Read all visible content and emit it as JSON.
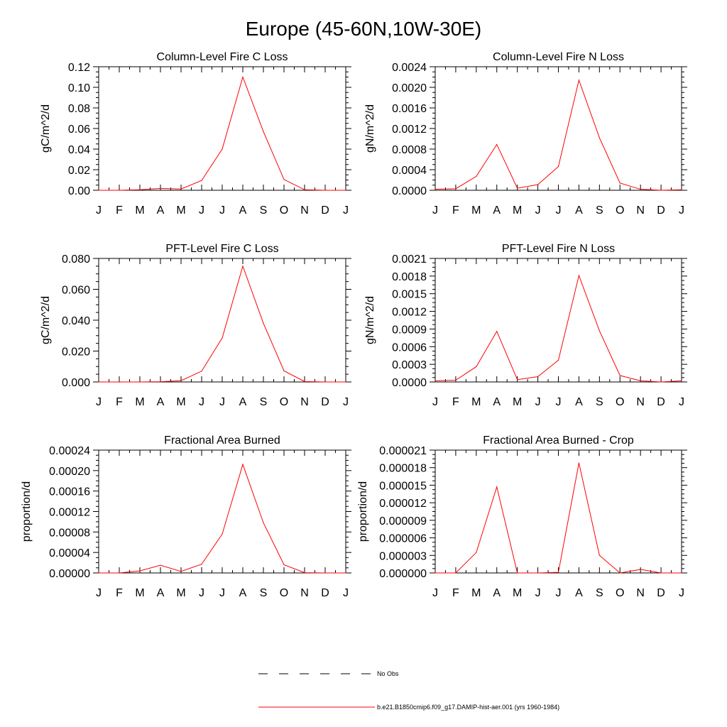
{
  "title": "Europe (45-60N,10W-30E)",
  "legend": {
    "items": [
      {
        "label": "No Obs",
        "style": "dashed",
        "color": "#000000"
      },
      {
        "label": "b.e21.B1850cmip6.f09_g17.DAMIP-hist-aer.001 (yrs 1960-1984)",
        "style": "solid",
        "color": "#ff0000"
      }
    ]
  },
  "chart_data": [
    {
      "type": "line",
      "title": "Column-Level Fire C Loss",
      "ylabel": "gC/m^2/d",
      "categories": [
        "J",
        "F",
        "M",
        "A",
        "M",
        "J",
        "J",
        "A",
        "S",
        "O",
        "N",
        "D",
        "J"
      ],
      "ylim": [
        0,
        0.12
      ],
      "yticks": [
        "0.00",
        "0.02",
        "0.04",
        "0.06",
        "0.08",
        "0.10",
        "0.12"
      ],
      "series": [
        {
          "color": "#ff0000",
          "values": [
            0.0,
            0.0,
            0.0005,
            0.0018,
            0.0012,
            0.0095,
            0.04,
            0.11,
            0.057,
            0.0105,
            0.0005,
            0.0,
            0.0
          ]
        }
      ]
    },
    {
      "type": "line",
      "title": "Column-Level Fire N Loss",
      "ylabel": "gN/m^2/d",
      "categories": [
        "J",
        "F",
        "M",
        "A",
        "M",
        "J",
        "J",
        "A",
        "S",
        "O",
        "N",
        "D",
        "J"
      ],
      "ylim": [
        0,
        0.0024
      ],
      "yticks": [
        "0.0000",
        "0.0004",
        "0.0008",
        "0.0012",
        "0.0016",
        "0.0020",
        "0.0024"
      ],
      "series": [
        {
          "color": "#ff0000",
          "values": [
            2e-05,
            3e-05,
            0.00027,
            0.00089,
            4e-05,
            0.00011,
            0.00046,
            0.00214,
            0.00102,
            0.00014,
            2e-05,
            0.0,
            1e-05
          ]
        }
      ]
    },
    {
      "type": "line",
      "title": "PFT-Level Fire C Loss",
      "ylabel": "gC/m^2/d",
      "categories": [
        "J",
        "F",
        "M",
        "A",
        "M",
        "J",
        "J",
        "A",
        "S",
        "O",
        "N",
        "D",
        "J"
      ],
      "ylim": [
        0,
        0.08
      ],
      "yticks": [
        "0.000",
        "0.020",
        "0.040",
        "0.060",
        "0.080"
      ],
      "series": [
        {
          "color": "#ff0000",
          "values": [
            0.0,
            0.0,
            0.0,
            0.0002,
            0.0008,
            0.007,
            0.0285,
            0.075,
            0.038,
            0.0072,
            0.0003,
            0.0,
            0.0
          ]
        }
      ]
    },
    {
      "type": "line",
      "title": "PFT-Level Fire N Loss",
      "ylabel": "gN/m^2/d",
      "categories": [
        "J",
        "F",
        "M",
        "A",
        "M",
        "J",
        "J",
        "A",
        "S",
        "O",
        "N",
        "D",
        "J"
      ],
      "ylim": [
        0,
        0.0021
      ],
      "yticks": [
        "0.0000",
        "0.0003",
        "0.0006",
        "0.0009",
        "0.0012",
        "0.0015",
        "0.0018",
        "0.0021"
      ],
      "series": [
        {
          "color": "#ff0000",
          "values": [
            2e-05,
            3e-05,
            0.00026,
            0.00086,
            4e-05,
            9e-05,
            0.00037,
            0.00181,
            0.00087,
            0.00011,
            2e-05,
            0.0,
            2e-05
          ]
        }
      ]
    },
    {
      "type": "line",
      "title": "Fractional Area Burned",
      "ylabel": "proportion/d",
      "categories": [
        "J",
        "F",
        "M",
        "A",
        "M",
        "J",
        "J",
        "A",
        "S",
        "O",
        "N",
        "D",
        "J"
      ],
      "ylim": [
        0,
        0.00024
      ],
      "yticks": [
        "0.00000",
        "0.00004",
        "0.00008",
        "0.00012",
        "0.00016",
        "0.00020",
        "0.00024"
      ],
      "series": [
        {
          "color": "#ff0000",
          "values": [
            0.0,
            0.0,
            4e-06,
            1.5e-05,
            3e-06,
            1.7e-05,
            7.6e-05,
            0.000212,
            9.8e-05,
            1.6e-05,
            5e-07,
            0.0,
            0.0
          ]
        }
      ]
    },
    {
      "type": "line",
      "title": "Fractional Area Burned - Crop",
      "ylabel": "proportion/d",
      "categories": [
        "J",
        "F",
        "M",
        "A",
        "M",
        "J",
        "J",
        "A",
        "S",
        "O",
        "N",
        "D",
        "J"
      ],
      "ylim": [
        0,
        2.1e-05
      ],
      "yticks": [
        "0.000000",
        "0.000003",
        "0.000006",
        "0.000009",
        "0.000012",
        "0.000015",
        "0.000018",
        "0.000021"
      ],
      "series": [
        {
          "color": "#ff0000",
          "values": [
            0.0,
            0.0,
            3.5e-06,
            1.47e-05,
            0.0,
            0.0,
            1e-07,
            1.88e-05,
            3e-06,
            0.0,
            6e-07,
            0.0,
            0.0
          ]
        }
      ]
    }
  ]
}
